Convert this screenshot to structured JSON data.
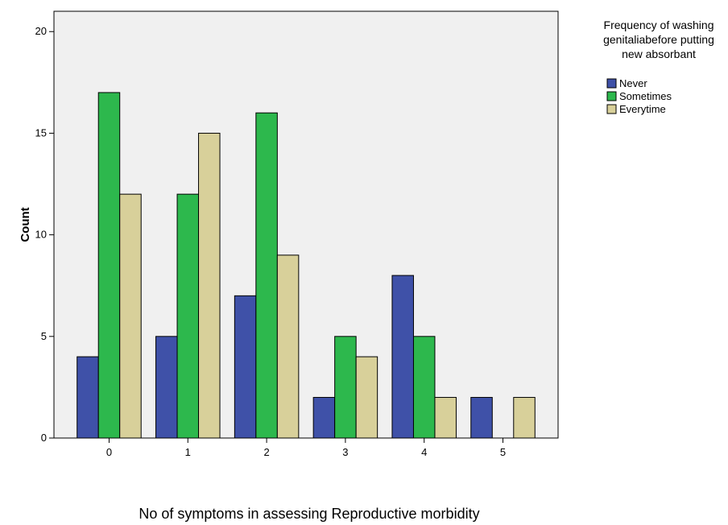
{
  "chart_data": {
    "type": "bar",
    "title": "",
    "xlabel": "No of symptoms  in assessing Reproductive  morbidity",
    "ylabel": "Count",
    "categories": [
      "0",
      "1",
      "2",
      "3",
      "4",
      "5"
    ],
    "series": [
      {
        "name": "Never",
        "values": [
          4,
          5,
          7,
          2,
          8,
          2
        ],
        "color": "#3f51a8"
      },
      {
        "name": "Sometimes",
        "values": [
          17,
          12,
          16,
          5,
          5,
          0
        ],
        "color": "#2db84d"
      },
      {
        "name": "Everytime",
        "values": [
          12,
          15,
          9,
          4,
          2,
          2
        ],
        "color": "#d8d09a"
      }
    ],
    "ylim": [
      0,
      21
    ],
    "yticks": [
      0,
      5,
      10,
      15,
      20
    ],
    "grid": false,
    "plot_background": "#f0f0f0",
    "legend": {
      "title_lines": [
        "Frequency of washing",
        "genitaliabefore putting",
        "new absorbant"
      ],
      "placement": "right"
    }
  }
}
